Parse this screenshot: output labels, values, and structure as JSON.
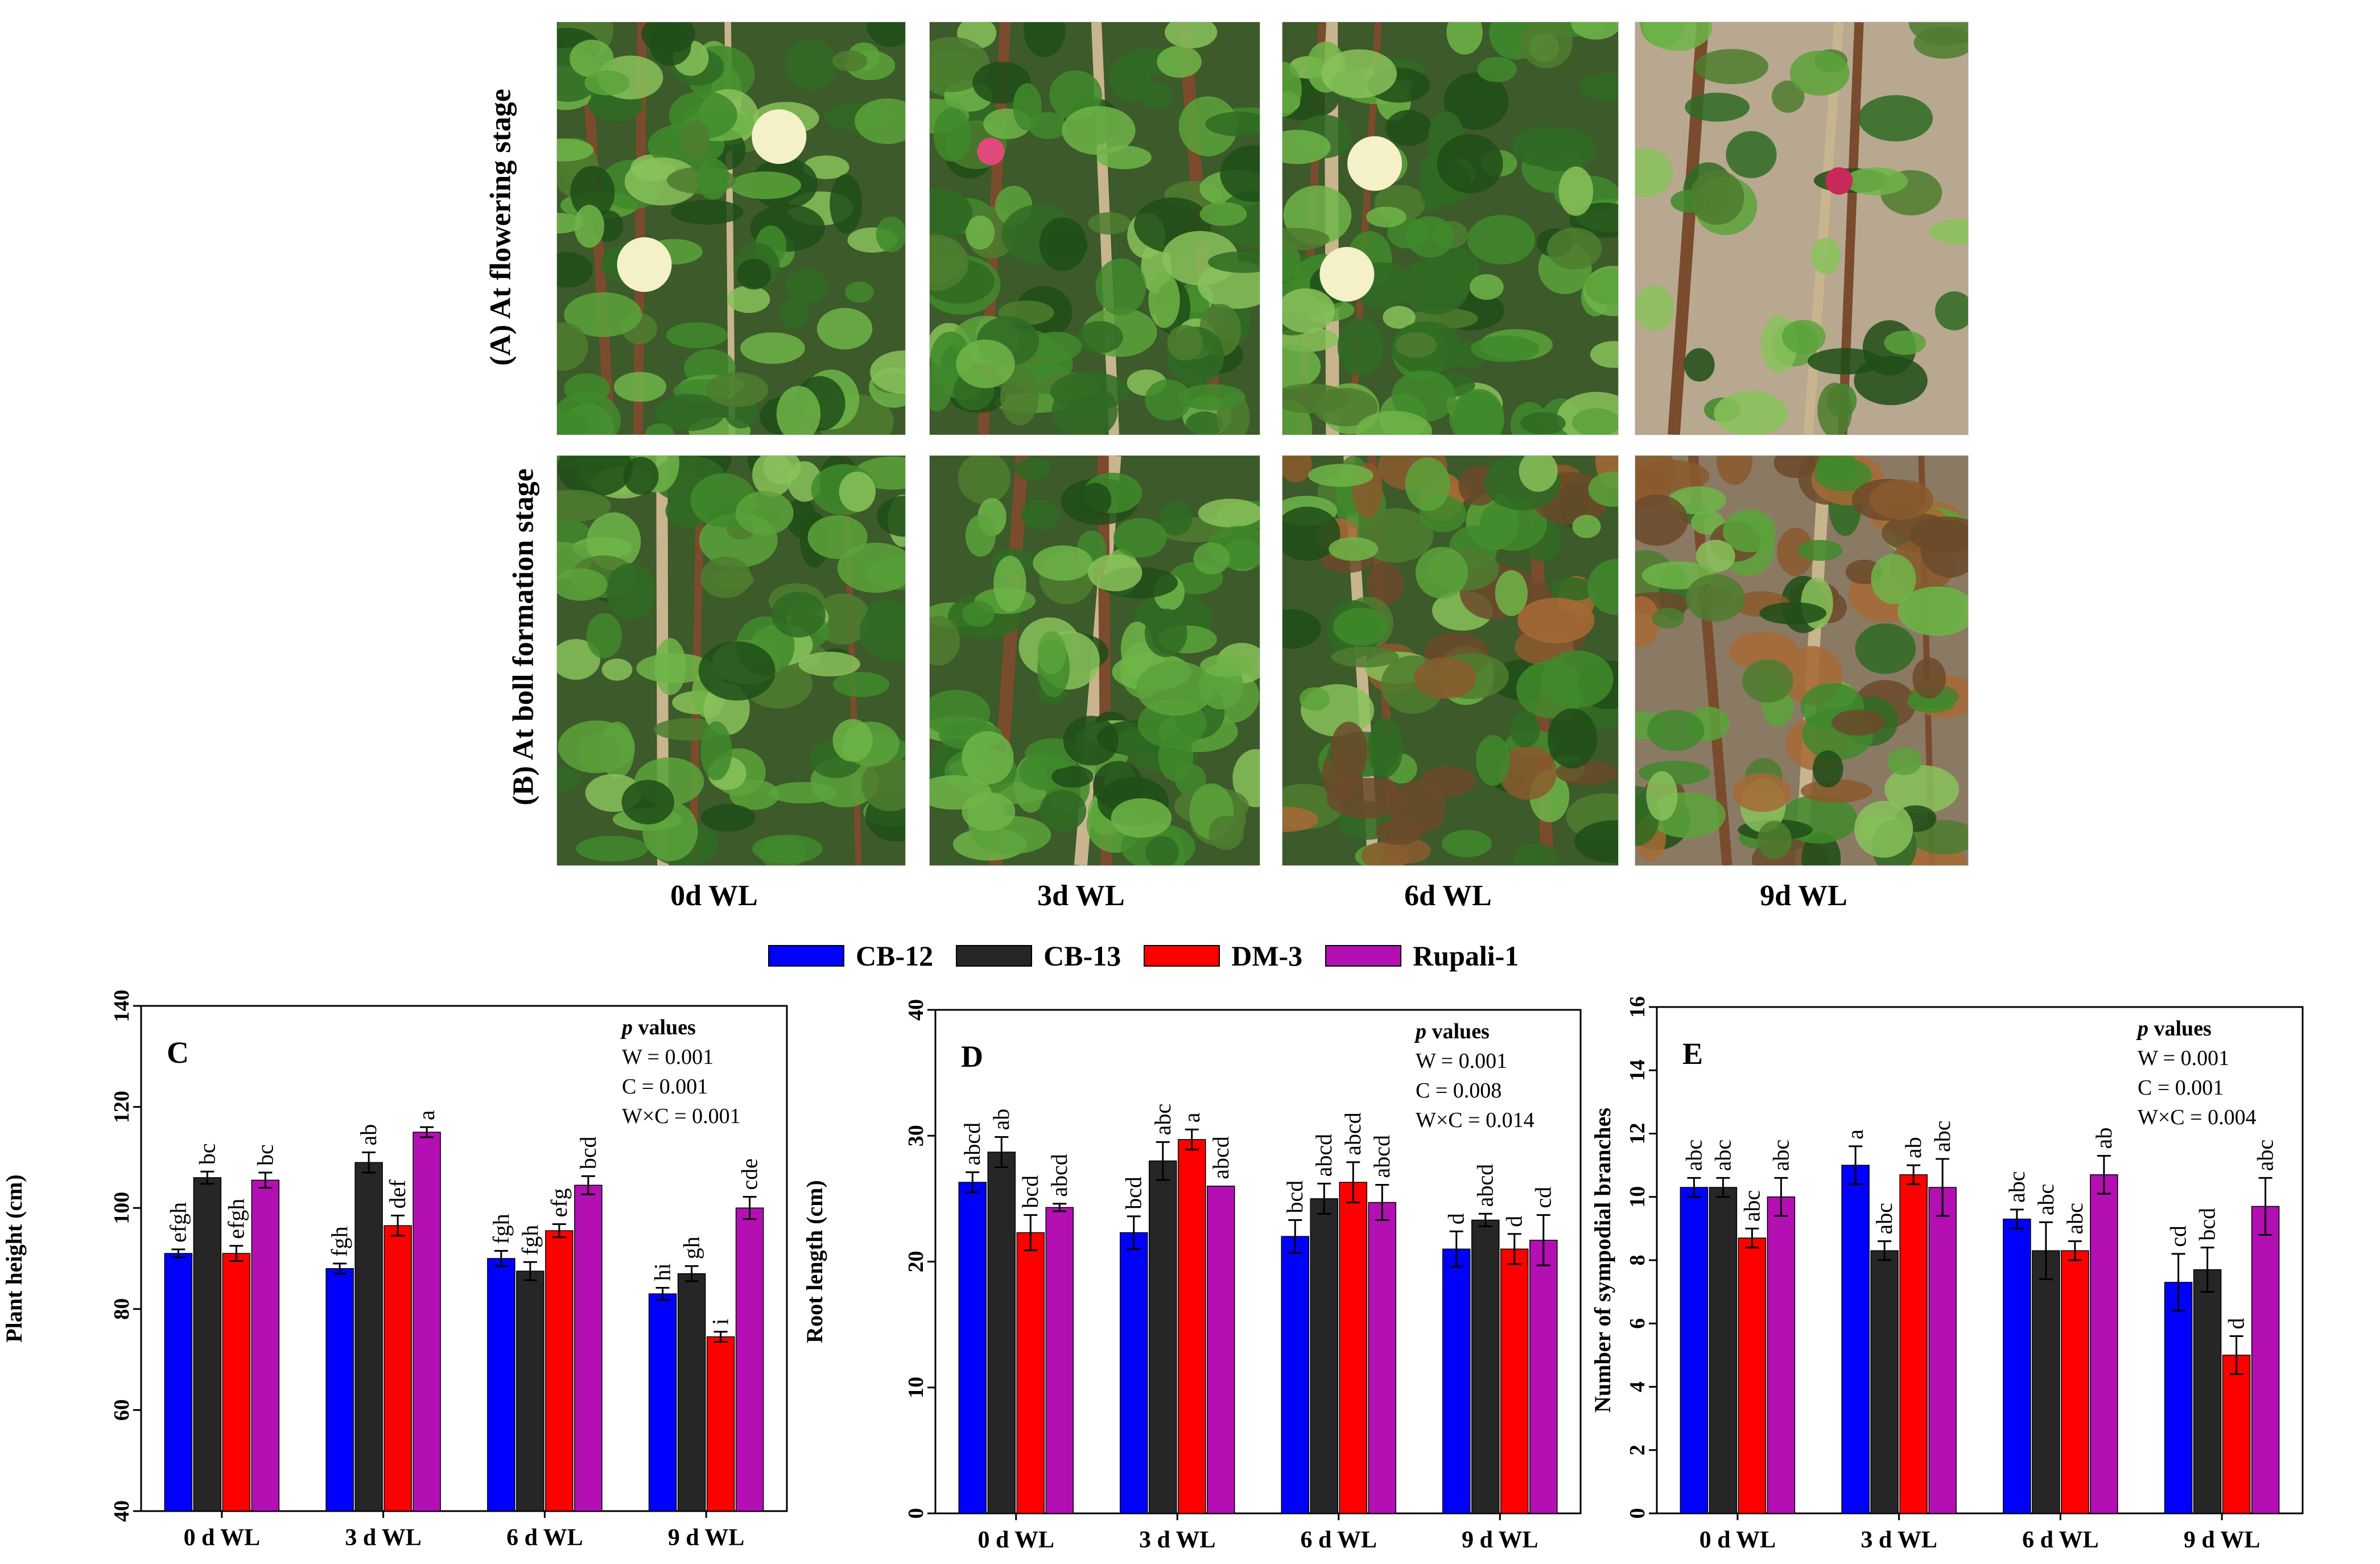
{
  "photos": {
    "row_labels": [
      "(A) At flowering stage",
      "(B) At boll formation stage"
    ],
    "column_labels": [
      "0d WL",
      "3d WL",
      "6d WL",
      "9d WL"
    ]
  },
  "colors": {
    "CB-12": "#0000FF",
    "CB-13": "#262626",
    "DM-3": "#FF0000",
    "Rupali-1": "#B30FB3"
  },
  "legend": [
    "CB-12",
    "CB-13",
    "DM-3",
    "Rupali-1"
  ],
  "chart_data": [
    {
      "type": "bar",
      "panel": "C",
      "ylabel": "Plant height (cm)",
      "ylim": [
        40,
        140
      ],
      "yticks": [
        40,
        60,
        80,
        100,
        120,
        140
      ],
      "categories": [
        "0 d WL",
        "3 d WL",
        "6 d WL",
        "9 d WL"
      ],
      "series": [
        {
          "name": "CB-12",
          "values": [
            91,
            88,
            90,
            83
          ],
          "errors": [
            0.8,
            1.0,
            1.5,
            1.2
          ],
          "labels": [
            "efgh",
            "fgh",
            "fgh",
            "hi"
          ]
        },
        {
          "name": "CB-13",
          "values": [
            106,
            109,
            87.5,
            87
          ],
          "errors": [
            1.2,
            2.0,
            1.8,
            1.5
          ],
          "labels": [
            "bc",
            "ab",
            "fgh",
            "gh"
          ]
        },
        {
          "name": "DM-3",
          "values": [
            91,
            96.5,
            95.5,
            74.5
          ],
          "errors": [
            1.5,
            2.0,
            1.3,
            1.0
          ],
          "labels": [
            "efgh",
            "def",
            "efg",
            "i"
          ]
        },
        {
          "name": "Rupali-1",
          "values": [
            105.5,
            115,
            104.5,
            100
          ],
          "errors": [
            1.5,
            1.0,
            1.8,
            2.2
          ],
          "labels": [
            "bc",
            "a",
            "bcd",
            "cde"
          ]
        }
      ],
      "pvalues": {
        "title": "p values",
        "lines": [
          "W = 0.001",
          "C = 0.001",
          "W×C = 0.001"
        ]
      }
    },
    {
      "type": "bar",
      "panel": "D",
      "ylabel": "Root length (cm)",
      "ylim": [
        0,
        40
      ],
      "yticks": [
        0,
        10,
        20,
        30,
        40
      ],
      "categories": [
        "0 d WL",
        "3 d WL",
        "6 d WL",
        "9 d WL"
      ],
      "series": [
        {
          "name": "CB-12",
          "values": [
            26.3,
            22.3,
            22,
            21
          ],
          "errors": [
            0.8,
            1.3,
            1.3,
            1.4
          ],
          "labels": [
            "abcd",
            "bcd",
            "bcd",
            "d"
          ]
        },
        {
          "name": "CB-13",
          "values": [
            28.7,
            28,
            25,
            23.3
          ],
          "errors": [
            1.2,
            1.5,
            1.2,
            0.5
          ],
          "labels": [
            "ab",
            "abc",
            "abcd",
            "abcd"
          ]
        },
        {
          "name": "DM-3",
          "values": [
            22.3,
            29.7,
            26.3,
            21
          ],
          "errors": [
            1.4,
            0.8,
            1.6,
            1.2
          ],
          "labels": [
            "bcd",
            "a",
            "abcd",
            "d"
          ]
        },
        {
          "name": "Rupali-1",
          "values": [
            24.3,
            26,
            24.7,
            21.7
          ],
          "errors": [
            0.3,
            0,
            1.4,
            2.0
          ],
          "labels": [
            "abcd",
            "abcd",
            "abcd",
            "cd"
          ]
        }
      ],
      "pvalues": {
        "title": "p values",
        "lines": [
          "W = 0.001",
          "C = 0.008",
          "W×C = 0.014"
        ]
      }
    },
    {
      "type": "bar",
      "panel": "E",
      "ylabel": "Number of sympodial branches",
      "ylim": [
        0,
        16
      ],
      "yticks": [
        0,
        2,
        4,
        6,
        8,
        10,
        12,
        14,
        16
      ],
      "categories": [
        "0 d WL",
        "3 d WL",
        "6 d WL",
        "9 d WL"
      ],
      "series": [
        {
          "name": "CB-12",
          "values": [
            10.3,
            11,
            9.3,
            7.3
          ],
          "errors": [
            0.3,
            0.6,
            0.3,
            0.9
          ],
          "labels": [
            "abc",
            "a",
            "abc",
            "cd"
          ]
        },
        {
          "name": "CB-13",
          "values": [
            10.3,
            8.3,
            8.3,
            7.7
          ],
          "errors": [
            0.3,
            0.3,
            0.9,
            0.7
          ],
          "labels": [
            "abc",
            "abc",
            "abc",
            "bcd"
          ]
        },
        {
          "name": "DM-3",
          "values": [
            8.7,
            10.7,
            8.3,
            5
          ],
          "errors": [
            0.3,
            0.3,
            0.3,
            0.6
          ],
          "labels": [
            "abc",
            "ab",
            "abc",
            "d"
          ]
        },
        {
          "name": "Rupali-1",
          "values": [
            10,
            10.3,
            10.7,
            9.7
          ],
          "errors": [
            0.6,
            0.9,
            0.6,
            0.9
          ],
          "labels": [
            "abc",
            "abc",
            "ab",
            "abc"
          ]
        }
      ],
      "pvalues": {
        "title": "p values",
        "lines": [
          "W = 0.001",
          "C = 0.001",
          "W×C = 0.004"
        ]
      }
    }
  ]
}
